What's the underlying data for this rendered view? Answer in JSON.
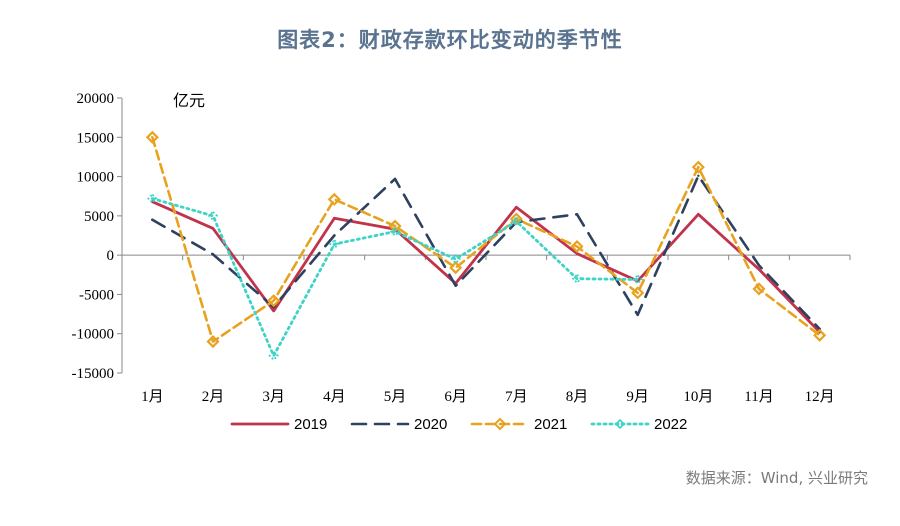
{
  "title": "图表2：财政存款环比变动的季节性",
  "source": "数据来源：Wind, 兴业研究",
  "chart_data": {
    "type": "line",
    "unit_label": "亿元",
    "categories": [
      "1月",
      "2月",
      "3月",
      "4月",
      "5月",
      "6月",
      "7月",
      "8月",
      "9月",
      "10月",
      "11月",
      "12月"
    ],
    "ylim": [
      -15000,
      20000
    ],
    "yticks": [
      20000,
      15000,
      10000,
      5000,
      0,
      -5000,
      -10000,
      -15000
    ],
    "series": [
      {
        "name": "2019",
        "color": "#c0334b",
        "dash": "solid",
        "values": [
          6800,
          3400,
          -7100,
          4700,
          3300,
          -3600,
          6100,
          200,
          -3300,
          5200,
          -1800,
          -9800
        ]
      },
      {
        "name": "2020",
        "color": "#2e4160",
        "dash": "long",
        "values": [
          4500,
          100,
          -6600,
          2500,
          9700,
          -3900,
          4200,
          5200,
          -7600,
          10100,
          -1300,
          -9400
        ]
      },
      {
        "name": "2021",
        "color": "#e8a21e",
        "dash": "medium",
        "values": [
          15000,
          -11000,
          -5800,
          7100,
          3700,
          -1600,
          4600,
          1100,
          -4800,
          11200,
          -4300,
          -10200
        ]
      },
      {
        "name": "2022",
        "color": "#3dd3c7",
        "dash": "dotted",
        "values": [
          7200,
          5000,
          -12800,
          1400,
          3000,
          -500,
          4300,
          -3000,
          -3100,
          null,
          null,
          null
        ]
      }
    ],
    "legend_position": "bottom",
    "grid": false
  }
}
